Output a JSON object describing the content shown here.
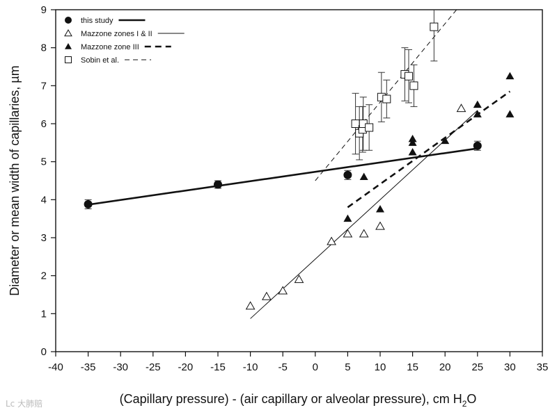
{
  "chart_data": {
    "type": "scatter",
    "title": "",
    "xlabel": "(Capillary pressure) - (air capillary or alveolar pressure), cm H",
    "xlabel_subscript": "2",
    "xlabel_suffix": "O",
    "ylabel": "Diameter or mean width of capillaries, µm",
    "xlim": [
      -40,
      35
    ],
    "ylim": [
      0,
      9
    ],
    "xticks": [
      -40,
      -35,
      -30,
      -25,
      -20,
      -15,
      -10,
      -5,
      0,
      5,
      10,
      15,
      20,
      25,
      30,
      35
    ],
    "yticks": [
      0,
      1,
      2,
      3,
      4,
      5,
      6,
      7,
      8,
      9
    ],
    "legend_position": "top-left",
    "series": [
      {
        "name": "this study",
        "marker": "filled-circle",
        "line_style": "thick-solid",
        "points": [
          {
            "x": -35,
            "y": 3.88,
            "err": 0.12
          },
          {
            "x": -15,
            "y": 4.4,
            "err": 0.1
          },
          {
            "x": 5,
            "y": 4.65,
            "err": 0.12
          },
          {
            "x": 25,
            "y": 5.42,
            "err": 0.12
          }
        ],
        "fit": [
          [
            -35,
            3.87
          ],
          [
            25,
            5.35
          ]
        ]
      },
      {
        "name": "Mazzone zones I & II",
        "marker": "open-triangle",
        "line_style": "thin-solid",
        "points": [
          {
            "x": -10,
            "y": 1.2
          },
          {
            "x": -7.5,
            "y": 1.45
          },
          {
            "x": -5,
            "y": 1.6
          },
          {
            "x": -2.5,
            "y": 1.9
          },
          {
            "x": 2.5,
            "y": 2.9
          },
          {
            "x": 5,
            "y": 3.1
          },
          {
            "x": 7.5,
            "y": 3.1
          },
          {
            "x": 10,
            "y": 3.3
          },
          {
            "x": 22.5,
            "y": 6.4
          }
        ],
        "fit": [
          [
            -10,
            0.87
          ],
          [
            25,
            6.35
          ]
        ]
      },
      {
        "name": "Mazzone zone III",
        "marker": "filled-triangle",
        "line_style": "thick-dashed",
        "points": [
          {
            "x": 5,
            "y": 3.5
          },
          {
            "x": 7.5,
            "y": 4.6
          },
          {
            "x": 10,
            "y": 3.75
          },
          {
            "x": 15,
            "y": 5.25
          },
          {
            "x": 15,
            "y": 5.5
          },
          {
            "x": 15,
            "y": 5.6
          },
          {
            "x": 20,
            "y": 5.55
          },
          {
            "x": 25,
            "y": 6.25
          },
          {
            "x": 25,
            "y": 6.5
          },
          {
            "x": 30,
            "y": 6.25
          },
          {
            "x": 30,
            "y": 7.25
          }
        ],
        "fit": [
          [
            5,
            3.8
          ],
          [
            30,
            6.85
          ]
        ]
      },
      {
        "name": "Sobin et al.",
        "marker": "open-square",
        "line_style": "thin-dashed",
        "points": [
          {
            "x": 6.2,
            "y": 6.0,
            "err": 0.8
          },
          {
            "x": 6.8,
            "y": 5.75,
            "err": 0.7
          },
          {
            "x": 7.3,
            "y": 5.85,
            "err": 0.6
          },
          {
            "x": 7.4,
            "y": 6.0,
            "err": 0.7
          },
          {
            "x": 8.3,
            "y": 5.9,
            "err": 0.6
          },
          {
            "x": 10.2,
            "y": 6.7,
            "err": 0.65
          },
          {
            "x": 11.0,
            "y": 6.65,
            "err": 0.5
          },
          {
            "x": 13.8,
            "y": 7.3,
            "err": 0.7
          },
          {
            "x": 14.4,
            "y": 7.25,
            "err": 0.7
          },
          {
            "x": 15.2,
            "y": 7.0,
            "err": 0.55
          },
          {
            "x": 18.3,
            "y": 8.55,
            "err": 0.9
          }
        ],
        "fit": [
          [
            0,
            4.5
          ],
          [
            22.5,
            9.15
          ]
        ]
      }
    ]
  },
  "watermark": "Lc 大肺赔"
}
